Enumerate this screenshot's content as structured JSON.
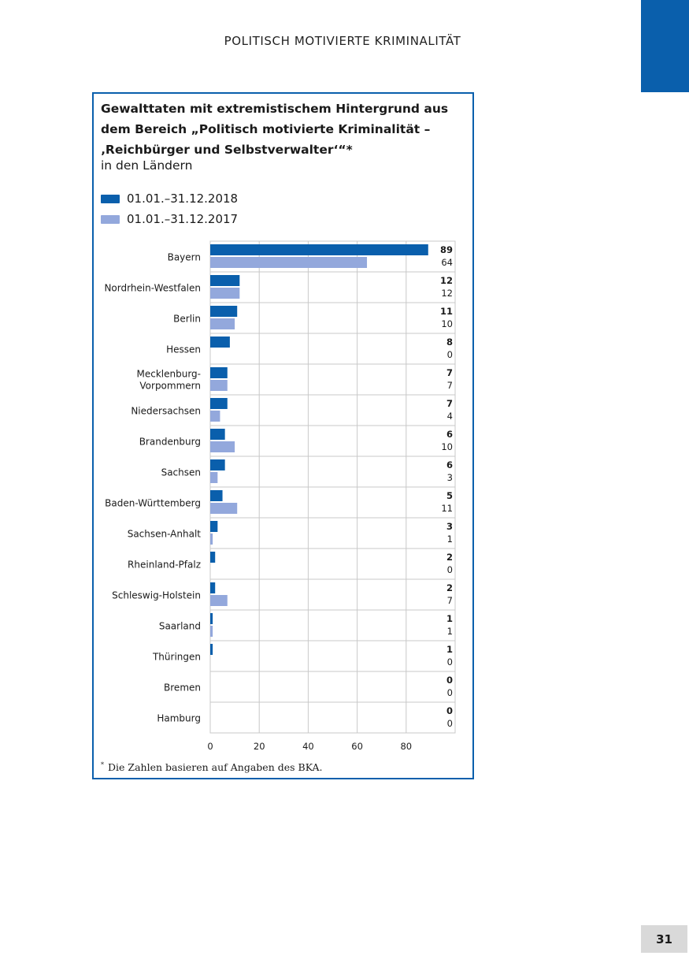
{
  "page": {
    "running_header": "POLITISCH MOTIVIERTE KRIMINALITÄT",
    "page_number": "31"
  },
  "colors": {
    "accent": "#0a5fac",
    "series_2018": "#0a5fac",
    "series_2017": "#93a8dc",
    "grid": "#c8c8c8"
  },
  "chart_data": {
    "type": "bar",
    "orientation": "horizontal",
    "title": "Gewalttaten mit extremistischem Hintergrund aus dem Bereich „Politisch motivierte Kriminalität – ‚Reichbürger und Selbstverwalter‘“*",
    "subtitle": "in den Ländern",
    "categories": [
      "Bayern",
      "Nordrhein-Westfalen",
      "Berlin",
      "Hessen",
      "Mecklenburg-Vorpommern",
      "Niedersachsen",
      "Brandenburg",
      "Sachsen",
      "Baden-Württemberg",
      "Sachsen-Anhalt",
      "Rheinland-Pfalz",
      "Schleswig-Holstein",
      "Saarland",
      "Thüringen",
      "Bremen",
      "Hamburg"
    ],
    "series": [
      {
        "name": "01.01.–31.12.2018",
        "values": [
          89,
          12,
          11,
          8,
          7,
          7,
          6,
          6,
          5,
          3,
          2,
          2,
          1,
          1,
          0,
          0
        ]
      },
      {
        "name": "01.01.–31.12.2017",
        "values": [
          64,
          12,
          10,
          0,
          7,
          4,
          10,
          3,
          11,
          1,
          0,
          7,
          1,
          0,
          0,
          0
        ]
      }
    ],
    "x_ticks": [
      0,
      20,
      40,
      60,
      80
    ],
    "xlim": [
      0,
      100
    ],
    "grid": true,
    "legend_position": "top-left",
    "footnote": "Die Zahlen basieren auf Angaben des BKA.",
    "footnote_marker": "*"
  }
}
